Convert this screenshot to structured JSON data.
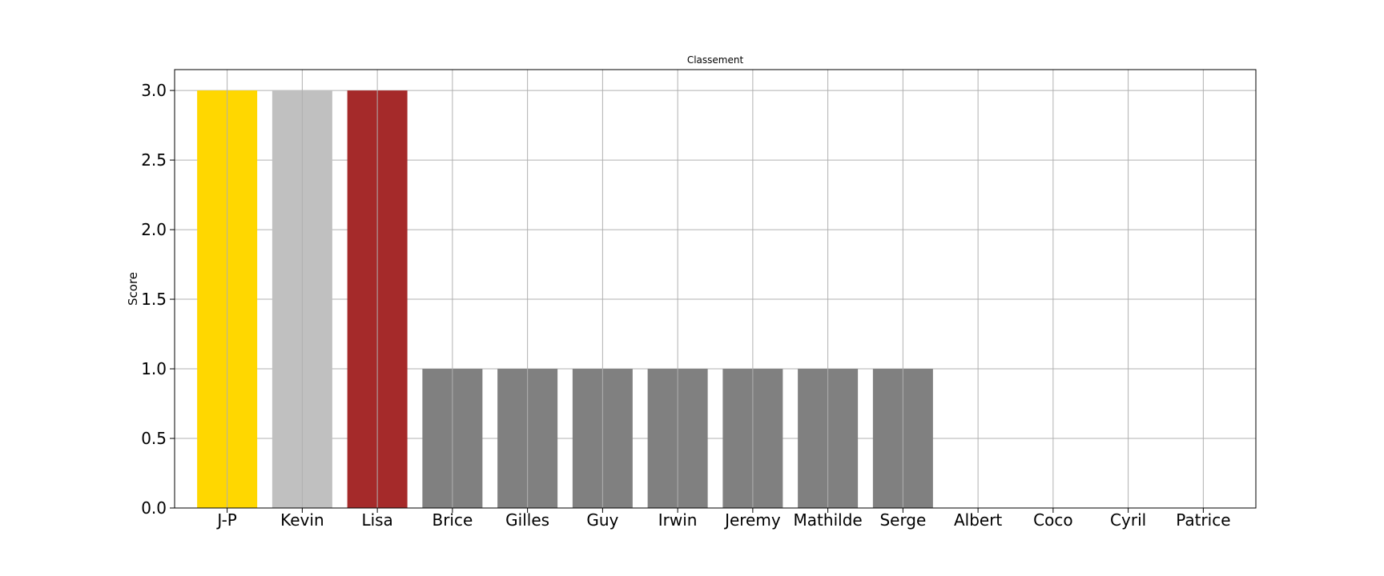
{
  "chart_data": {
    "type": "bar",
    "title": "Classement",
    "xlabel": "",
    "ylabel": "Score",
    "categories": [
      "J-P",
      "Kevin",
      "Lisa",
      "Brice",
      "Gilles",
      "Guy",
      "Irwin",
      "Jeremy",
      "Mathilde",
      "Serge",
      "Albert",
      "Coco",
      "Cyril",
      "Patrice"
    ],
    "values": [
      3,
      3,
      3,
      1,
      1,
      1,
      1,
      1,
      1,
      1,
      0,
      0,
      0,
      0
    ],
    "colors": [
      "#FFD700",
      "#C0C0C0",
      "#A52A2A",
      "#808080",
      "#808080",
      "#808080",
      "#808080",
      "#808080",
      "#808080",
      "#808080",
      "#808080",
      "#808080",
      "#808080",
      "#808080"
    ],
    "ylim": [
      0,
      3.15
    ],
    "yticks": [
      "0.0",
      "0.5",
      "1.0",
      "1.5",
      "2.0",
      "2.5",
      "3.0"
    ],
    "grid": true,
    "grid_color": "#b0b0b0"
  }
}
